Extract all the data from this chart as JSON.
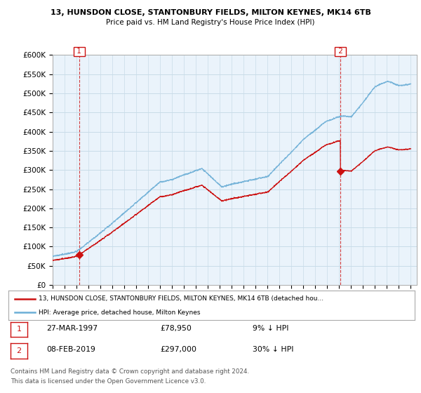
{
  "title1": "13, HUNSDON CLOSE, STANTONBURY FIELDS, MILTON KEYNES, MK14 6TB",
  "title2": "Price paid vs. HM Land Registry's House Price Index (HPI)",
  "ylabel_ticks": [
    "£0",
    "£50K",
    "£100K",
    "£150K",
    "£200K",
    "£250K",
    "£300K",
    "£350K",
    "£400K",
    "£450K",
    "£500K",
    "£550K",
    "£600K"
  ],
  "ytick_values": [
    0,
    50000,
    100000,
    150000,
    200000,
    250000,
    300000,
    350000,
    400000,
    450000,
    500000,
    550000,
    600000
  ],
  "sale1": {
    "date_num": 1997.23,
    "price": 78950,
    "label": "1",
    "pct": "9% ↓ HPI",
    "date_str": "27-MAR-1997"
  },
  "sale2": {
    "date_num": 2019.1,
    "price": 297000,
    "label": "2",
    "pct": "30% ↓ HPI",
    "date_str": "08-FEB-2019"
  },
  "legend_label1": "13, HUNSDON CLOSE, STANTONBURY FIELDS, MILTON KEYNES, MK14 6TB (detached hou...",
  "legend_label2": "HPI: Average price, detached house, Milton Keynes",
  "footer1": "Contains HM Land Registry data © Crown copyright and database right 2024.",
  "footer2": "This data is licensed under the Open Government Licence v3.0.",
  "hpi_color": "#6baed6",
  "price_color": "#cc1111",
  "vline_color": "#cc1111",
  "plot_bg_color": "#eaf3fb",
  "background_color": "#ffffff",
  "grid_color": "#c8dce8"
}
